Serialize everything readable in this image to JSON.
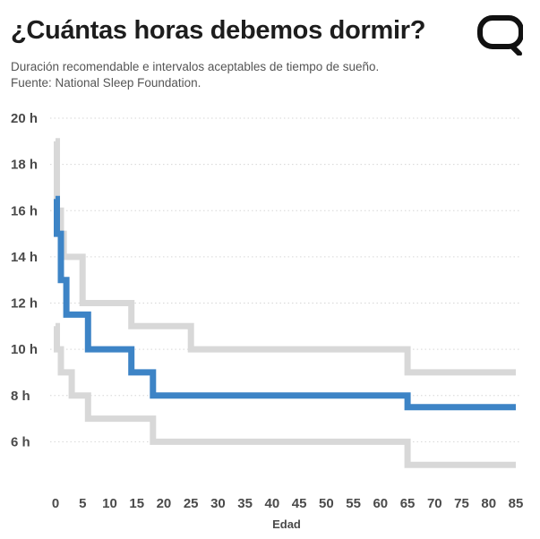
{
  "header": {
    "title": "¿Cuántas horas debemos dormir?",
    "subtitle_line1": "Duración recomendable e intervalos aceptables de tiempo de sueño.",
    "subtitle_line2": "Fuente: National Sleep Foundation."
  },
  "logo": {
    "icon": "speech-bubble-logo-icon",
    "color": "#111111"
  },
  "chart_data": {
    "type": "line",
    "step": true,
    "title": "¿Cuántas horas debemos dormir?",
    "xlabel": "Edad",
    "ylabel": "",
    "xlim": [
      0,
      85
    ],
    "ylim": [
      4,
      20
    ],
    "x_ticks": [
      0,
      5,
      10,
      15,
      20,
      25,
      30,
      35,
      40,
      45,
      50,
      55,
      60,
      65,
      70,
      75,
      80,
      85
    ],
    "y_ticks": [
      6,
      8,
      10,
      12,
      14,
      16,
      18,
      20
    ],
    "y_tick_labels": [
      "6 h",
      "8 h",
      "10 h",
      "12 h",
      "14 h",
      "16 h",
      "18 h",
      "20 h"
    ],
    "grid": "horizontal dotted",
    "series": [
      {
        "role": "upper-acceptable",
        "color": "#d8d8d8",
        "x": [
          0,
          0.25,
          0.25,
          1,
          1,
          1.5,
          1.5,
          2,
          2,
          3,
          3,
          5,
          5,
          6,
          6,
          13,
          13,
          14,
          14,
          17,
          17,
          25,
          25,
          26,
          26,
          64,
          64,
          65,
          65,
          85
        ],
        "y": [
          19,
          19,
          16,
          16,
          15,
          15,
          14,
          14,
          14,
          14,
          14,
          14,
          12,
          12,
          12,
          12,
          12,
          12,
          11,
          11,
          11,
          11,
          10,
          10,
          10,
          10,
          10,
          10,
          9,
          9
        ]
      },
      {
        "role": "recommended",
        "color": "#3d84c6",
        "x": [
          0,
          0.25,
          0.25,
          1,
          1,
          2,
          2,
          5,
          5,
          6,
          6,
          13,
          13,
          14,
          14,
          17,
          17,
          18,
          18,
          64,
          64,
          65,
          65,
          85
        ],
        "y": [
          16.5,
          16.5,
          15,
          15,
          13,
          13,
          11.5,
          11.5,
          11.5,
          11.5,
          10,
          10,
          10,
          10,
          9,
          9,
          9,
          9,
          8,
          8,
          8,
          8,
          7.5,
          7.5
        ]
      },
      {
        "role": "lower-acceptable",
        "color": "#d8d8d8",
        "x": [
          0,
          0.25,
          0.25,
          1,
          1,
          2,
          2,
          3,
          3,
          5,
          5,
          6,
          6,
          17,
          17,
          18,
          18,
          64,
          64,
          65,
          65,
          85
        ],
        "y": [
          11,
          11,
          10,
          10,
          9,
          9,
          9,
          9,
          8,
          8,
          8,
          8,
          7,
          7,
          7,
          7,
          6,
          6,
          6,
          6,
          5,
          5
        ]
      }
    ]
  }
}
